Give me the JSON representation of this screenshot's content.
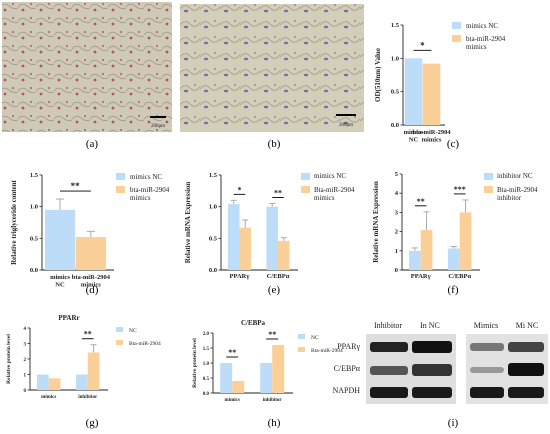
{
  "colors": {
    "nc": "#bddcf7",
    "treat": "#fbcf98",
    "error": "#aaaaaa",
    "axis": "#222222"
  },
  "panel_letters": [
    "(a)",
    "(b)",
    "(c)",
    "(d)",
    "(e)",
    "(f)",
    "(g)",
    "(h)",
    "(i)"
  ],
  "micro": {
    "a": {
      "scale_label": "200μm"
    },
    "b": {
      "scale_label": "200μm"
    }
  },
  "blot": {
    "columns": [
      "Inhibitor",
      "In NC",
      "Mimics",
      "Mi NC"
    ],
    "rows": [
      "PPARγ",
      "C/EBPα",
      "NAPDH"
    ]
  },
  "chart_data": [
    {
      "id": "c",
      "type": "bar",
      "categories": [
        "mimics NC",
        "bta-miR-2904 mimics"
      ],
      "values": [
        1.0,
        0.92
      ],
      "ylabel": "OD(510nm) Value",
      "ylim": [
        0,
        1.5
      ],
      "yticks": [
        "0.0",
        "0.5",
        "1.0",
        "1.5"
      ],
      "legend": [
        "mimics NC",
        "bta-miR-2904 mimics"
      ],
      "legend_position": "right",
      "annotations": [
        "*"
      ]
    },
    {
      "id": "d",
      "type": "bar",
      "categories": [
        "mimics NC",
        "bta-miR-2904 mimics"
      ],
      "values": [
        0.95,
        0.52
      ],
      "errors": [
        0.17,
        0.09
      ],
      "ylabel": "Relative triglyceride content",
      "ylim": [
        0,
        1.5
      ],
      "yticks": [
        "0.0",
        "0.5",
        "1.0",
        "1.5"
      ],
      "legend": [
        "mimics NC",
        "bta-miR-2904 mimics"
      ],
      "legend_position": "right",
      "annotations": [
        "**"
      ]
    },
    {
      "id": "e",
      "type": "bar",
      "categories": [
        "PPARγ",
        "C/EBPα"
      ],
      "series": [
        {
          "name": "mimics NC",
          "values": [
            1.04,
            1.0
          ],
          "errors": [
            0.06,
            0.05
          ]
        },
        {
          "name": "Bta-miR-2904 mimics",
          "values": [
            0.67,
            0.46
          ],
          "errors": [
            0.12,
            0.05
          ]
        }
      ],
      "ylabel": "Relative mRNA Expression",
      "ylim": [
        0,
        1.5
      ],
      "yticks": [
        "0.0",
        "0.5",
        "1.0",
        "1.5"
      ],
      "legend_position": "right",
      "annotations": [
        "*",
        "**"
      ]
    },
    {
      "id": "f",
      "type": "bar",
      "categories": [
        "PPARγ",
        "C/EBPα"
      ],
      "series": [
        {
          "name": "inhibitor NC",
          "values": [
            1.0,
            1.12
          ],
          "errors": [
            0.15,
            0.1
          ]
        },
        {
          "name": "Bta-miR-2904 inhibitor",
          "values": [
            2.08,
            3.0
          ],
          "errors": [
            0.95,
            0.65
          ]
        }
      ],
      "ylabel": "Relative mRNA Expression",
      "ylim": [
        0,
        5
      ],
      "yticks": [
        "0",
        "1",
        "2",
        "3",
        "4",
        "5"
      ],
      "legend_position": "right",
      "annotations": [
        "**",
        "***"
      ]
    },
    {
      "id": "g",
      "type": "bar",
      "title": "PPARr",
      "categories": [
        "mimics",
        "inhibitor"
      ],
      "series": [
        {
          "name": "NC",
          "values": [
            1.0,
            1.0
          ]
        },
        {
          "name": "Bta-miR-2904",
          "values": [
            0.75,
            2.42
          ],
          "errors": [
            0,
            0.5
          ]
        }
      ],
      "ylabel": "Relative protein level",
      "ylim": [
        0,
        4
      ],
      "yticks": [
        "0",
        "1",
        "2",
        "3",
        "4"
      ],
      "legend_position": "right",
      "annotations": [
        "**"
      ]
    },
    {
      "id": "h",
      "type": "bar",
      "title": "C/EBPa",
      "categories": [
        "mimics",
        "inhibitor"
      ],
      "series": [
        {
          "name": "NC",
          "values": [
            1.0,
            1.0
          ]
        },
        {
          "name": "Bta-miR-2904",
          "values": [
            0.4,
            1.6
          ]
        }
      ],
      "ylabel": "Relative protein level",
      "ylim": [
        0,
        2.0
      ],
      "yticks": [
        "0.0",
        "0.5",
        "1.0",
        "1.5",
        "2.0"
      ],
      "legend_position": "right",
      "annotations": [
        "**",
        "**"
      ]
    }
  ]
}
